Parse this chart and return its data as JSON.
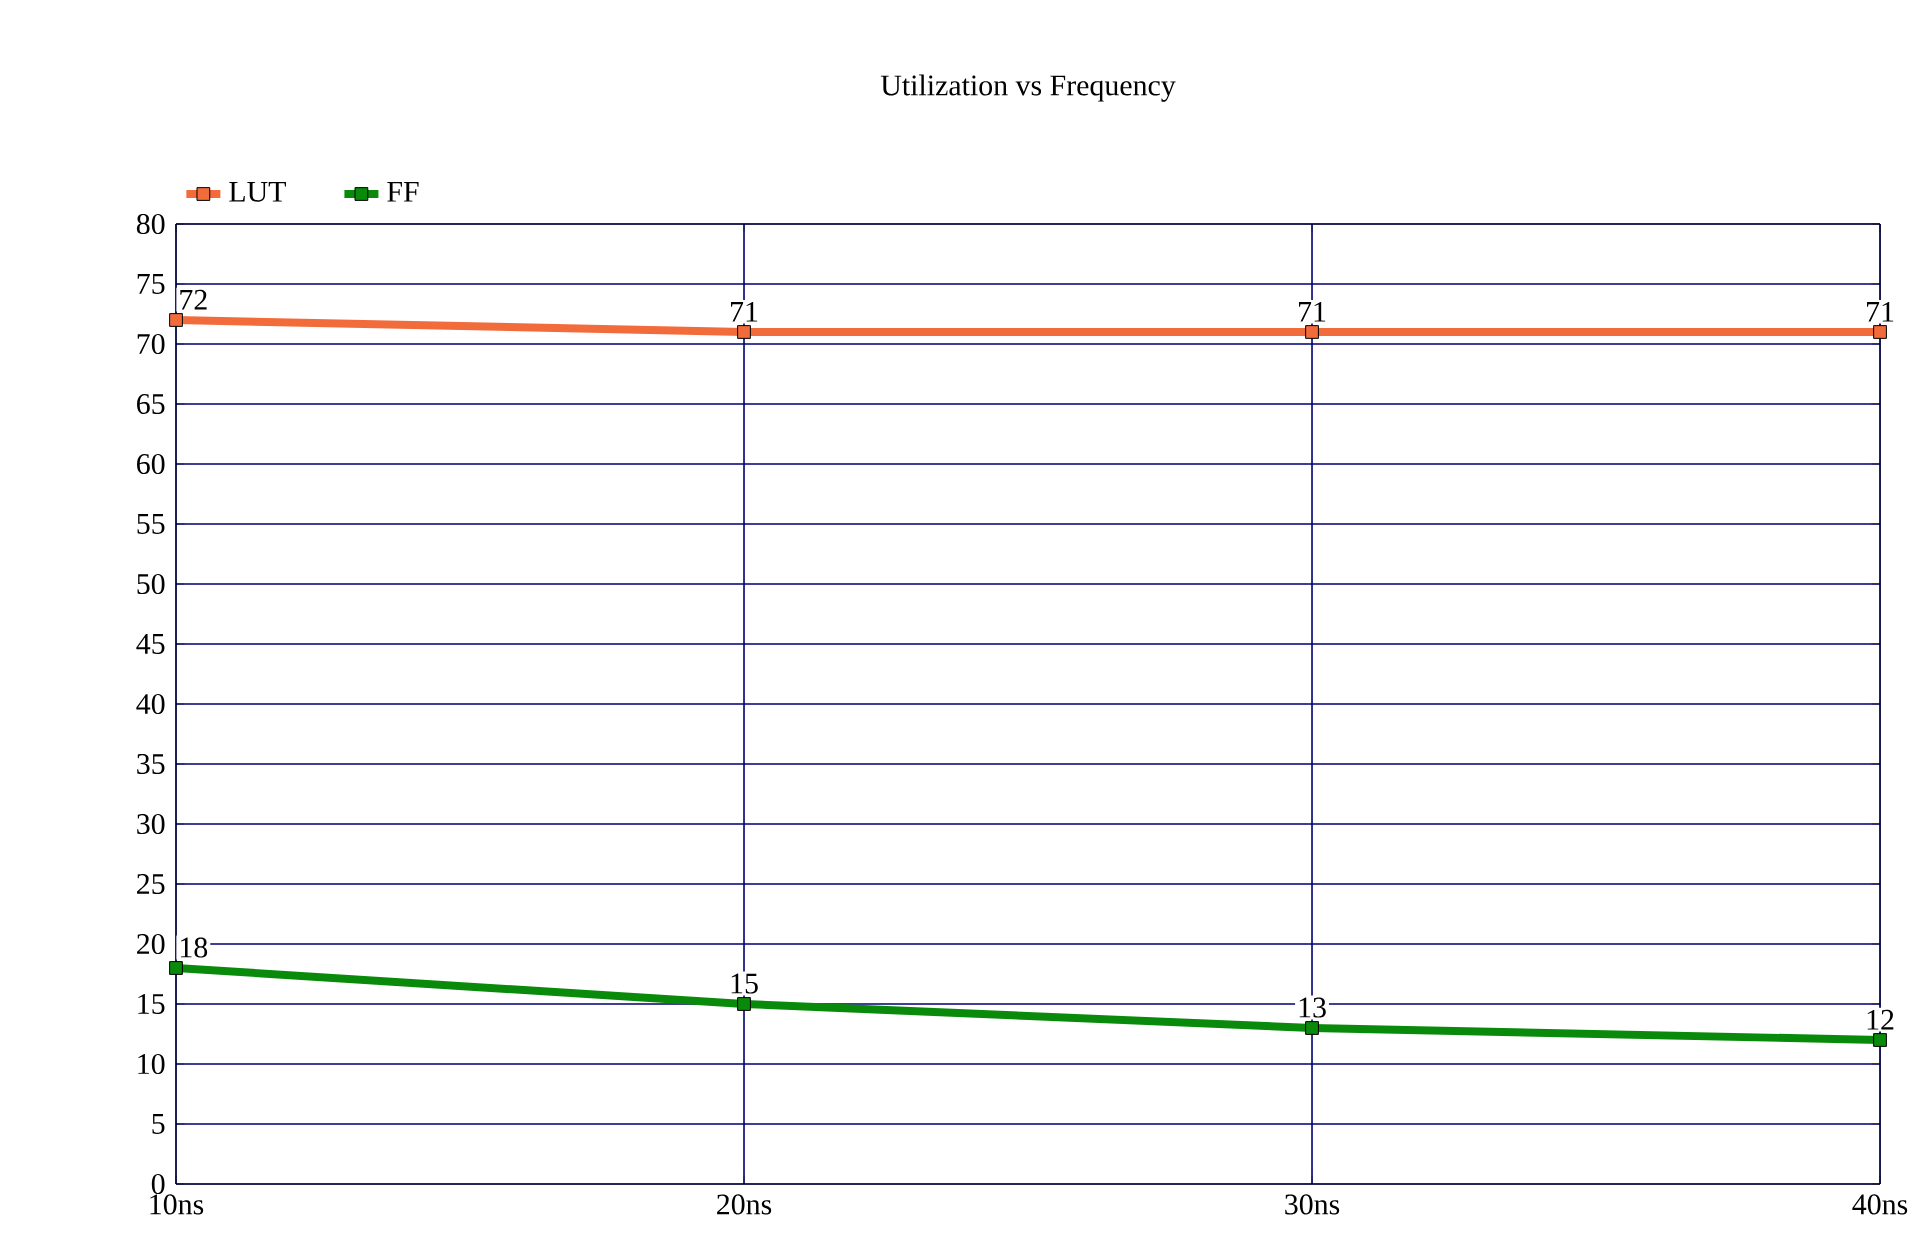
{
  "chart_data": {
    "type": "line",
    "title": "Utilization vs Frequency",
    "categories": [
      "10ns",
      "20ns",
      "30ns",
      "40ns"
    ],
    "series": [
      {
        "name": "LUT",
        "color": "#f26b3a",
        "values": [
          72,
          71,
          71,
          71
        ]
      },
      {
        "name": "FF",
        "color": "#0a8a0a",
        "values": [
          18,
          15,
          13,
          12
        ]
      }
    ],
    "ylim": [
      0,
      80
    ],
    "yticks": [
      0,
      5,
      10,
      15,
      20,
      25,
      30,
      35,
      40,
      45,
      50,
      55,
      60,
      65,
      70,
      75,
      80
    ],
    "grid": true,
    "legend": "top left",
    "marker": "square",
    "line_style": "solid",
    "data_labels": true
  }
}
